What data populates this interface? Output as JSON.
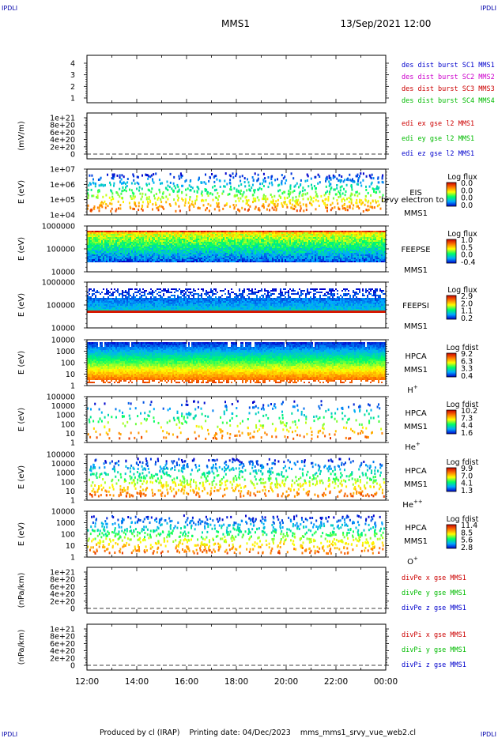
{
  "corner_label": "IPDLI",
  "header": {
    "mission": "MMS1",
    "datetime": "13/Sep/2021 12:00"
  },
  "footer": "Produced by cl (IRAP)    Printing date: 04/Dec/2023    mms_mms1_srvy_vue_web2.cl",
  "x_ticks": [
    "12:00",
    "14:00",
    "16:00",
    "18:00",
    "20:00",
    "22:00",
    "00:00"
  ],
  "chart_data": [
    {
      "type": "line",
      "ylabel": "",
      "yticks": [
        "1",
        "2",
        "3",
        "4"
      ],
      "legend": [
        {
          "text": "des dist burst SC1 MMS1",
          "color": "#0000cc"
        },
        {
          "text": "des dist burst SC2 MMS2",
          "color": "#cc00cc"
        },
        {
          "text": "des dist burst SC3 MMS3",
          "color": "#cc0000"
        },
        {
          "text": "des dist burst SC4 MMS4",
          "color": "#00bb00"
        }
      ]
    },
    {
      "type": "line",
      "ylabel": "(mV/m)",
      "yticks": [
        "1e+21",
        "8e+20",
        "6e+20",
        "4e+20",
        "2e+20",
        "0"
      ],
      "legend": [
        {
          "text": "edi ex gse l2 MMS1",
          "color": "#cc0000"
        },
        {
          "text": "edi ey gse l2 MMS1",
          "color": "#00bb00"
        },
        {
          "text": "edi ez gse l2 MMS1",
          "color": "#0000cc"
        }
      ]
    },
    {
      "type": "heatmap",
      "ylabel": "E (eV)",
      "yticks": [
        "1e+07",
        "1e+06",
        "1e+05",
        "1e+04"
      ],
      "instrument": [
        "EIS",
        "MMS1"
      ],
      "overlay_text": "brvy electron to",
      "colorbar": {
        "title": "Log flux",
        "ticks": [
          "0.0",
          "0.0",
          "0.0",
          "0.0"
        ]
      }
    },
    {
      "type": "heatmap",
      "ylabel": "E (eV)",
      "yticks": [
        "1000000",
        "100000",
        "10000"
      ],
      "instrument": [
        "FEEPSE",
        "MMS1"
      ],
      "colorbar": {
        "title": "Log flux",
        "ticks": [
          "1.0",
          "0.5",
          "0.0",
          "-0.4"
        ]
      }
    },
    {
      "type": "heatmap",
      "ylabel": "E (eV)",
      "yticks": [
        "1000000",
        "100000",
        "10000"
      ],
      "instrument": [
        "FEEPSI",
        "MMS1"
      ],
      "colorbar": {
        "title": "Log flux",
        "ticks": [
          "2.9",
          "2.0",
          "1.1",
          "0.2"
        ]
      }
    },
    {
      "type": "heatmap",
      "ylabel": "E (eV)",
      "yticks": [
        "10000",
        "1000",
        "100",
        "10",
        "1"
      ],
      "instrument": [
        "HPCA",
        "MMS1"
      ],
      "species": {
        "base": "H",
        "sup": "+"
      },
      "colorbar": {
        "title": "Log fdist",
        "ticks": [
          "9.2",
          "6.3",
          "3.3",
          "0.4"
        ]
      }
    },
    {
      "type": "heatmap",
      "ylabel": "E (eV)",
      "yticks": [
        "100000",
        "10000",
        "1000",
        "100",
        "10",
        "1"
      ],
      "instrument": [
        "HPCA",
        "MMS1"
      ],
      "species": {
        "base": "He",
        "sup": "+"
      },
      "colorbar": {
        "title": "Log fdist",
        "ticks": [
          "10.2",
          "7.3",
          "4.4",
          "1.6"
        ]
      }
    },
    {
      "type": "heatmap",
      "ylabel": "E (eV)",
      "yticks": [
        "100000",
        "10000",
        "1000",
        "100",
        "10",
        "1"
      ],
      "instrument": [
        "HPCA",
        "MMS1"
      ],
      "species": {
        "base": "He",
        "sup": "++"
      },
      "colorbar": {
        "title": "Log fdist",
        "ticks": [
          "9.9",
          "7.0",
          "4.1",
          "1.3"
        ]
      }
    },
    {
      "type": "heatmap",
      "ylabel": "E (eV)",
      "yticks": [
        "10000",
        "1000",
        "100",
        "10",
        "1"
      ],
      "instrument": [
        "HPCA",
        "MMS1"
      ],
      "species": {
        "base": "O",
        "sup": "+"
      },
      "colorbar": {
        "title": "Log fdist",
        "ticks": [
          "11.4",
          "8.5",
          "5.6",
          "2.8"
        ]
      }
    },
    {
      "type": "line",
      "ylabel": "(nPa/km)",
      "yticks": [
        "1e+21",
        "8e+20",
        "6e+20",
        "4e+20",
        "2e+20",
        "0"
      ],
      "legend": [
        {
          "text": "divPe x gse MMS1",
          "color": "#cc0000"
        },
        {
          "text": "divPe y gse MMS1",
          "color": "#00bb00"
        },
        {
          "text": "divPe z gse MMS1",
          "color": "#0000cc"
        }
      ]
    },
    {
      "type": "line",
      "ylabel": "(nPa/km)",
      "yticks": [
        "1e+21",
        "8e+20",
        "6e+20",
        "4e+20",
        "2e+20",
        "0"
      ],
      "legend": [
        {
          "text": "divPi x gse MMS1",
          "color": "#cc0000"
        },
        {
          "text": "divPi y gse MMS1",
          "color": "#00bb00"
        },
        {
          "text": "divPi z gse MMS1",
          "color": "#0000cc"
        }
      ]
    }
  ]
}
